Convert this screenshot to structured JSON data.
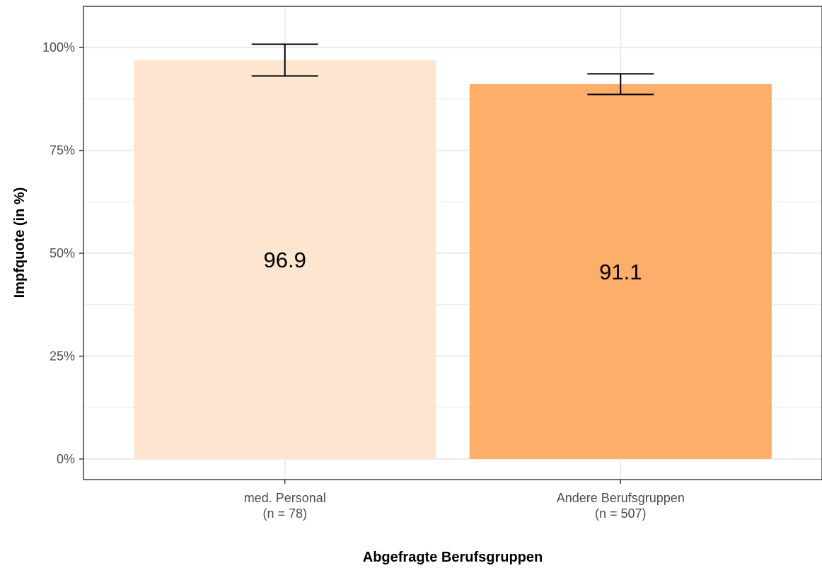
{
  "chart_data": {
    "type": "bar",
    "categories": [
      "med. Personal",
      "Andere Berufsgruppen"
    ],
    "category_counts": [
      "(n = 78)",
      "(n = 507)"
    ],
    "values": [
      96.9,
      91.1
    ],
    "value_labels": [
      "96.9",
      "91.1"
    ],
    "error_bars": [
      {
        "low": 93.1,
        "high": 100.8
      },
      {
        "low": 88.6,
        "high": 93.6
      }
    ],
    "colors": [
      "#fde5cf",
      "#fdae6b"
    ],
    "xlabel": "Abgefragte Berufsgruppen",
    "ylabel": "Impfquote (in %)",
    "ylim": [
      -5,
      110
    ],
    "yticks": [
      0,
      25,
      50,
      75,
      100
    ],
    "ytick_labels": [
      "0%",
      "25%",
      "50%",
      "75%",
      "100%"
    ],
    "grid": true,
    "legend": "none"
  }
}
